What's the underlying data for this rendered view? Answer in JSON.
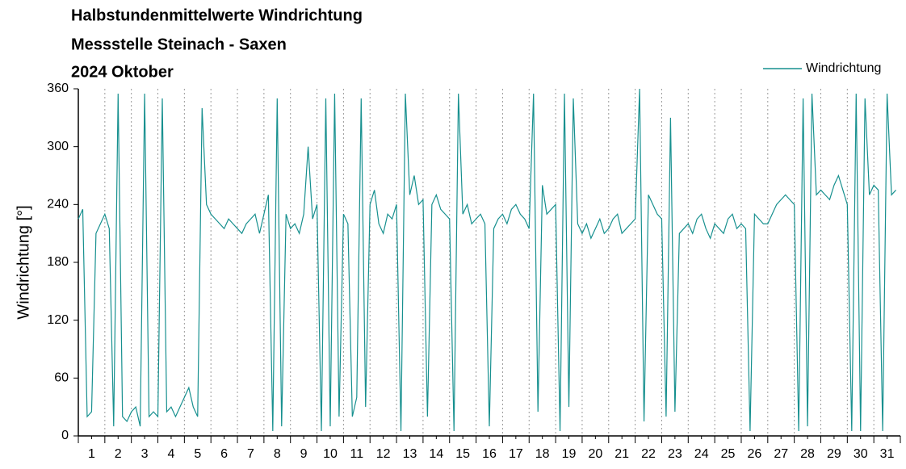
{
  "chart_data": {
    "type": "line",
    "title": "Halbstundenmittelwerte Windrichtung",
    "subtitle": "Messstelle Steinach - Saxen",
    "period": "2024 Oktober",
    "ylabel": "Windrichtung [°]",
    "legend": "top-right",
    "grid": true,
    "xlim": [
      0,
      744
    ],
    "xticks": [
      {
        "value": 12,
        "label": "1"
      },
      {
        "value": 36,
        "label": "2"
      },
      {
        "value": 60,
        "label": "3"
      },
      {
        "value": 84,
        "label": "4"
      },
      {
        "value": 108,
        "label": "5"
      },
      {
        "value": 132,
        "label": "6"
      },
      {
        "value": 156,
        "label": "7"
      },
      {
        "value": 180,
        "label": "8"
      },
      {
        "value": 204,
        "label": "9"
      },
      {
        "value": 228,
        "label": "10"
      },
      {
        "value": 252,
        "label": "11"
      },
      {
        "value": 276,
        "label": "12"
      },
      {
        "value": 300,
        "label": "13"
      },
      {
        "value": 324,
        "label": "14"
      },
      {
        "value": 348,
        "label": "15"
      },
      {
        "value": 372,
        "label": "16"
      },
      {
        "value": 396,
        "label": "17"
      },
      {
        "value": 420,
        "label": "18"
      },
      {
        "value": 444,
        "label": "19"
      },
      {
        "value": 468,
        "label": "20"
      },
      {
        "value": 492,
        "label": "21"
      },
      {
        "value": 516,
        "label": "22"
      },
      {
        "value": 540,
        "label": "23"
      },
      {
        "value": 564,
        "label": "24"
      },
      {
        "value": 588,
        "label": "25"
      },
      {
        "value": 612,
        "label": "26"
      },
      {
        "value": 636,
        "label": "27"
      },
      {
        "value": 660,
        "label": "28"
      },
      {
        "value": 684,
        "label": "29"
      },
      {
        "value": 708,
        "label": "30"
      },
      {
        "value": 732,
        "label": "31"
      }
    ],
    "ylim": [
      0,
      360
    ],
    "yticks": [
      0,
      60,
      120,
      180,
      240,
      300,
      360
    ],
    "x": [
      0,
      4,
      8,
      12,
      16,
      20,
      24,
      28,
      32,
      36,
      40,
      44,
      48,
      52,
      56,
      60,
      64,
      68,
      72,
      76,
      80,
      84,
      88,
      92,
      96,
      100,
      104,
      108,
      112,
      116,
      120,
      124,
      128,
      132,
      136,
      140,
      144,
      148,
      152,
      156,
      160,
      164,
      168,
      172,
      176,
      180,
      184,
      188,
      192,
      196,
      200,
      204,
      208,
      212,
      216,
      220,
      224,
      228,
      232,
      236,
      240,
      244,
      248,
      252,
      256,
      260,
      264,
      268,
      272,
      276,
      280,
      284,
      288,
      292,
      296,
      300,
      304,
      308,
      312,
      316,
      320,
      324,
      328,
      332,
      336,
      340,
      344,
      348,
      352,
      356,
      360,
      364,
      368,
      372,
      376,
      380,
      384,
      388,
      392,
      396,
      400,
      404,
      408,
      412,
      416,
      420,
      424,
      428,
      432,
      436,
      440,
      444,
      448,
      452,
      456,
      460,
      464,
      468,
      472,
      476,
      480,
      484,
      488,
      492,
      496,
      500,
      504,
      508,
      512,
      516,
      520,
      524,
      528,
      532,
      536,
      540,
      544,
      548,
      552,
      556,
      560,
      564,
      568,
      572,
      576,
      580,
      584,
      588,
      592,
      596,
      600,
      604,
      608,
      612,
      616,
      620,
      624,
      628,
      632,
      636,
      640,
      644,
      648,
      652,
      656,
      660,
      664,
      668,
      672,
      676,
      680,
      684,
      688,
      692,
      696,
      700,
      704,
      708,
      712,
      716,
      720,
      724,
      728,
      732,
      736,
      740
    ],
    "series": [
      {
        "name": "Windrichtung",
        "color": "#17908f",
        "values": [
          225,
          235,
          20,
          25,
          210,
          220,
          230,
          215,
          10,
          355,
          20,
          15,
          25,
          30,
          10,
          355,
          20,
          25,
          20,
          350,
          25,
          30,
          20,
          30,
          40,
          50,
          30,
          20,
          340,
          240,
          230,
          225,
          220,
          215,
          225,
          220,
          215,
          210,
          220,
          225,
          230,
          210,
          230,
          250,
          5,
          350,
          10,
          230,
          215,
          220,
          210,
          230,
          300,
          225,
          240,
          5,
          350,
          10,
          355,
          20,
          230,
          220,
          20,
          40,
          350,
          30,
          240,
          255,
          220,
          210,
          230,
          225,
          240,
          5,
          355,
          250,
          270,
          240,
          245,
          20,
          240,
          250,
          235,
          230,
          225,
          5,
          355,
          230,
          240,
          220,
          225,
          230,
          220,
          10,
          215,
          225,
          230,
          220,
          235,
          240,
          230,
          225,
          215,
          355,
          25,
          260,
          230,
          235,
          240,
          5,
          355,
          30,
          350,
          220,
          210,
          220,
          205,
          215,
          225,
          210,
          215,
          225,
          230,
          210,
          215,
          220,
          225,
          360,
          15,
          250,
          240,
          230,
          225,
          20,
          330,
          25,
          210,
          215,
          220,
          210,
          225,
          230,
          215,
          205,
          220,
          215,
          210,
          225,
          230,
          215,
          220,
          215,
          5,
          230,
          225,
          220,
          220,
          230,
          240,
          245,
          250,
          245,
          240,
          5,
          350,
          10,
          355,
          250,
          255,
          250,
          245,
          260,
          270,
          255,
          240,
          5,
          355,
          5,
          350,
          250,
          260,
          255,
          5,
          355,
          250,
          255
        ]
      }
    ]
  }
}
